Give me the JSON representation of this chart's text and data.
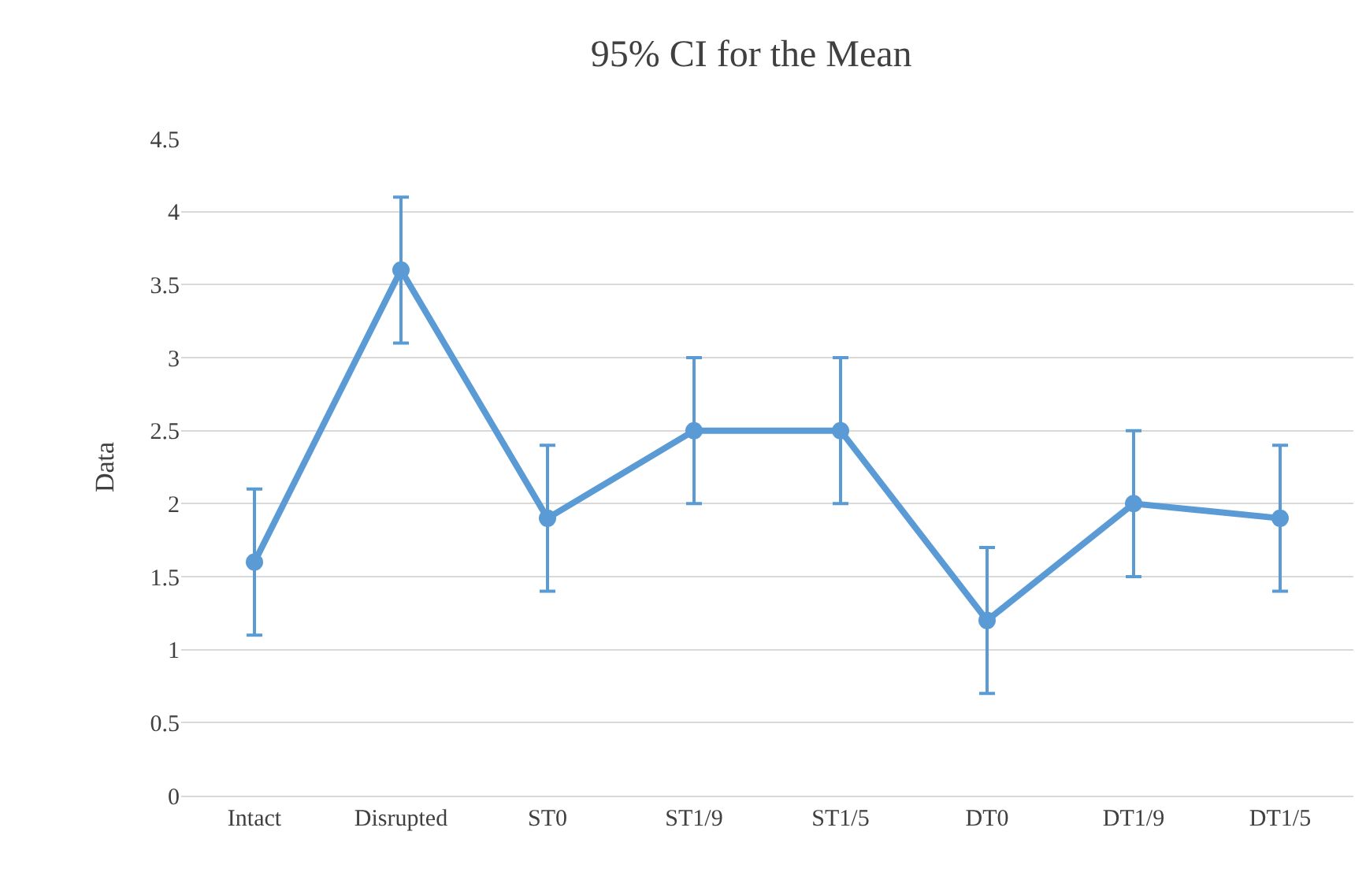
{
  "chart_data": {
    "type": "line",
    "title": "95% CI for the Mean",
    "ylabel": "Data",
    "categories": [
      "Intact",
      "Disrupted",
      "ST0",
      "ST1/9",
      "ST1/5",
      "DT0",
      "DT1/9",
      "DT1/5"
    ],
    "series": [
      {
        "color": "#5b9bd5",
        "values": [
          1.6,
          3.6,
          1.9,
          2.5,
          2.5,
          1.2,
          2.0,
          1.9
        ],
        "errors": [
          0.5,
          0.5,
          0.5,
          0.5,
          0.5,
          0.5,
          0.5,
          0.5
        ]
      }
    ],
    "ylim": [
      0,
      4.5
    ],
    "yticks": [
      0,
      0.5,
      1,
      1.5,
      2,
      2.5,
      3,
      3.5,
      4,
      4.5
    ],
    "grid": "y",
    "marker": "circle",
    "line_style": "solid"
  }
}
